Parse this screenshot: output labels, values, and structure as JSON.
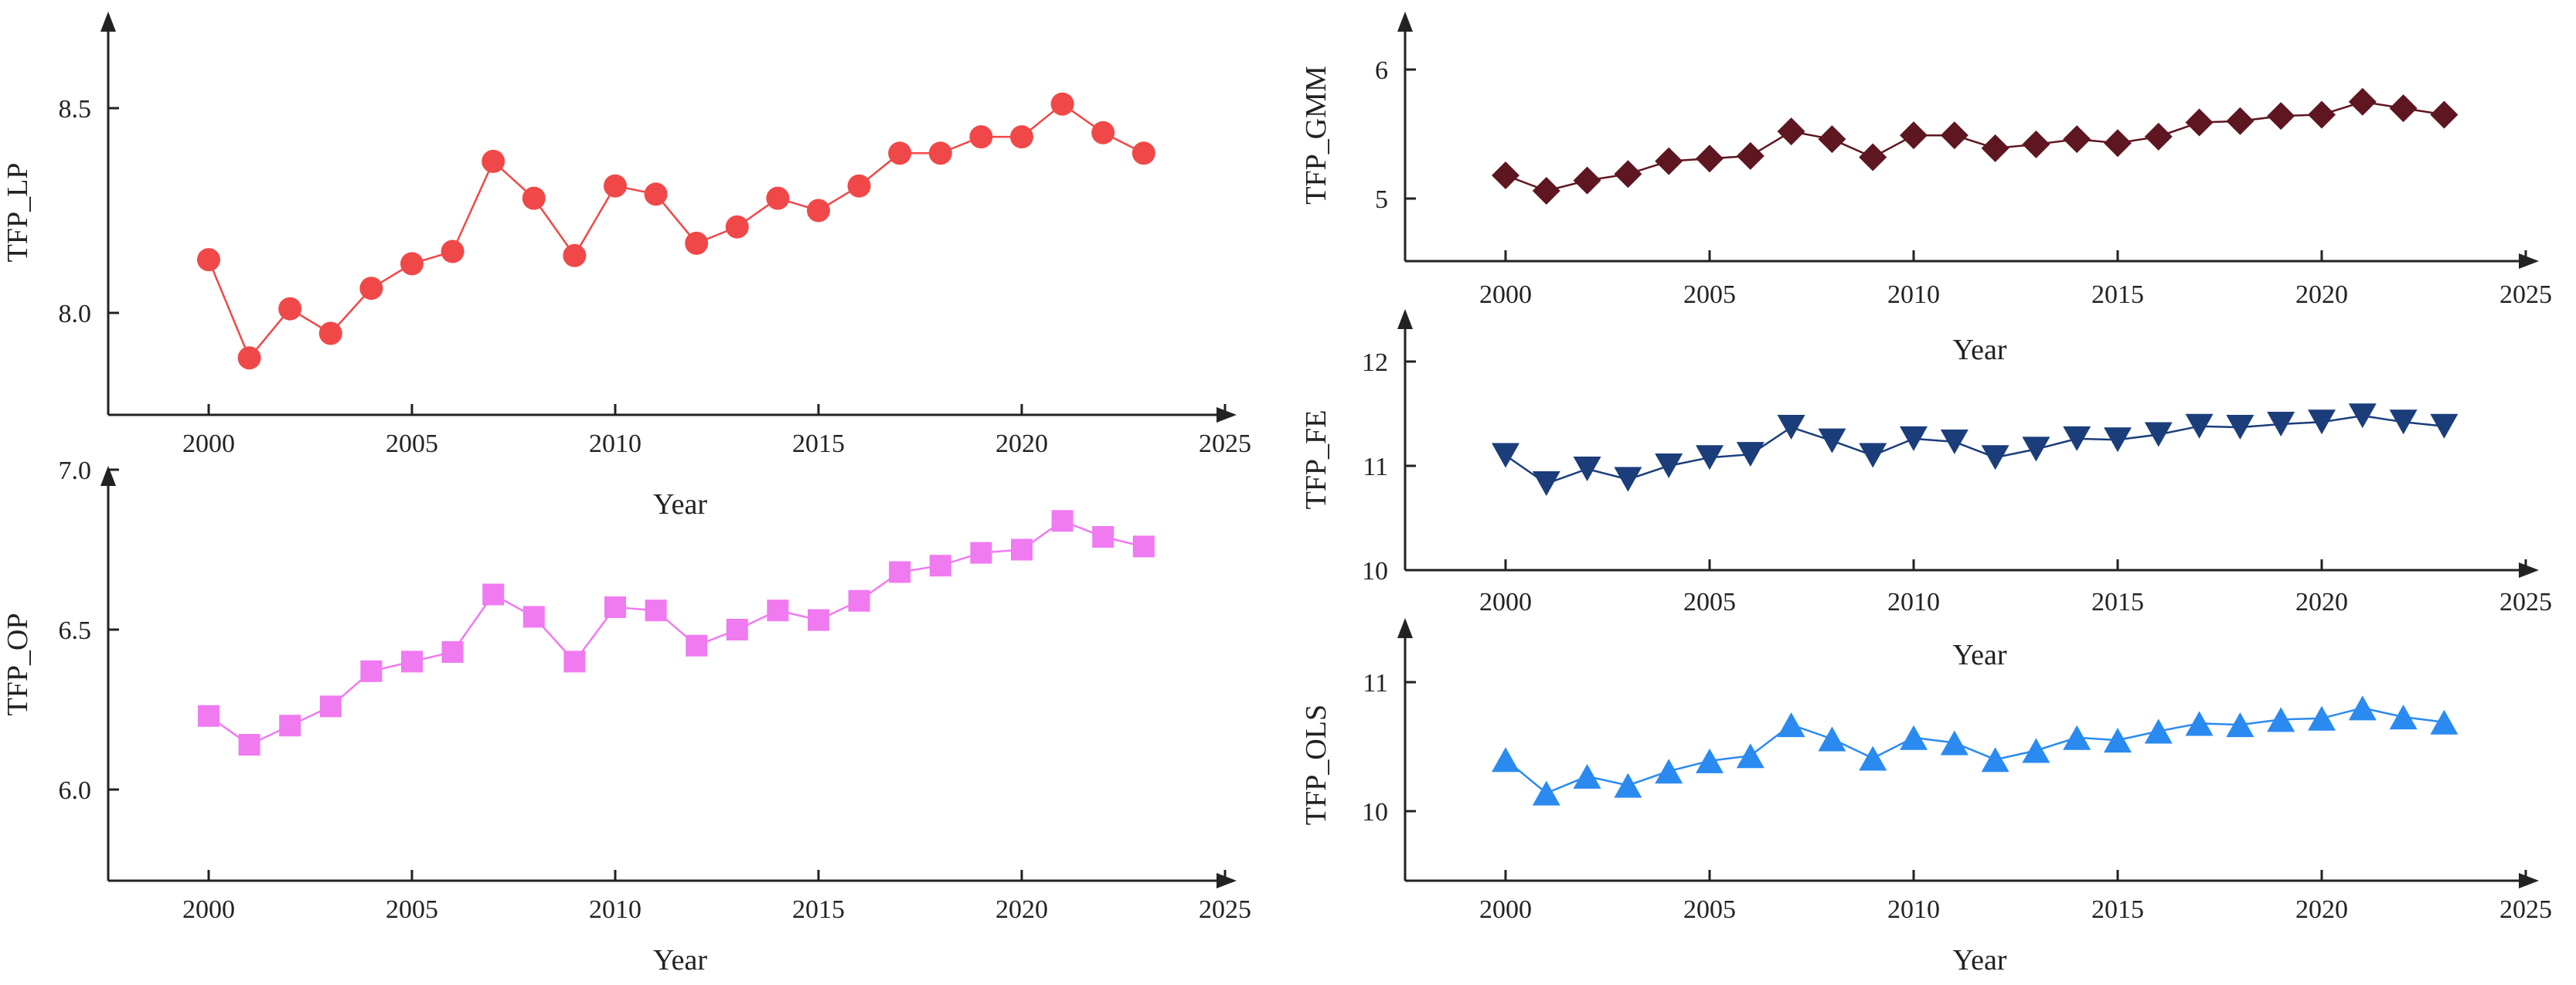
{
  "chart_data": [
    {
      "id": "lp",
      "type": "line",
      "title": "",
      "xlabel": "Year",
      "ylabel": "TFP_LP",
      "xlim": [
        1997.5,
        2025
      ],
      "ylim": [
        7.75,
        8.72
      ],
      "xticks": [
        2000,
        2005,
        2010,
        2015,
        2020,
        2025
      ],
      "xtick_labels": [
        "2000",
        "2005",
        "2010",
        "2015",
        "2020",
        "2025"
      ],
      "yticks": [
        8.0,
        8.5
      ],
      "ytick_labels": [
        "8.0",
        "8.5"
      ],
      "grid": false,
      "marker": "circle",
      "color": "#f04848",
      "x": [
        2000,
        2001,
        2002,
        2003,
        2004,
        2005,
        2006,
        2007,
        2008,
        2009,
        2010,
        2011,
        2012,
        2013,
        2014,
        2015,
        2016,
        2017,
        2018,
        2019,
        2020,
        2021,
        2022,
        2023
      ],
      "values": [
        8.13,
        7.89,
        8.01,
        7.95,
        8.06,
        8.12,
        8.15,
        8.37,
        8.28,
        8.14,
        8.31,
        8.29,
        8.17,
        8.21,
        8.28,
        8.25,
        8.31,
        8.39,
        8.39,
        8.43,
        8.43,
        8.51,
        8.44,
        8.39
      ]
    },
    {
      "id": "op",
      "type": "line",
      "title": "",
      "xlabel": "Year",
      "ylabel": "TFP_OP",
      "xlim": [
        1997.5,
        2025
      ],
      "ylim": [
        5.88,
        7.0
      ],
      "xticks": [
        2000,
        2005,
        2010,
        2015,
        2020,
        2025
      ],
      "xtick_labels": [
        "2000",
        "2005",
        "2010",
        "2015",
        "2020",
        "2025"
      ],
      "yticks": [
        6.0,
        6.5,
        7.0
      ],
      "ytick_labels": [
        "6.0",
        "6.5",
        "7.0"
      ],
      "grid": false,
      "marker": "square",
      "color": "#f07af0",
      "x": [
        2000,
        2001,
        2002,
        2003,
        2004,
        2005,
        2006,
        2007,
        2008,
        2009,
        2010,
        2011,
        2012,
        2013,
        2014,
        2015,
        2016,
        2017,
        2018,
        2019,
        2020,
        2021,
        2022,
        2023
      ],
      "values": [
        6.23,
        6.14,
        6.2,
        6.26,
        6.37,
        6.4,
        6.43,
        6.61,
        6.54,
        6.4,
        6.57,
        6.56,
        6.45,
        6.5,
        6.56,
        6.53,
        6.59,
        6.68,
        6.7,
        6.74,
        6.75,
        6.84,
        6.79,
        6.76
      ]
    },
    {
      "id": "gmm",
      "type": "line",
      "title": "",
      "xlabel": "Year",
      "ylabel": "TFP_GMM",
      "xlim": [
        1997.5,
        2025
      ],
      "ylim": [
        4.75,
        6.28
      ],
      "xticks": [
        2000,
        2005,
        2010,
        2015,
        2020,
        2025
      ],
      "xtick_labels": [
        "2000",
        "2005",
        "2010",
        "2015",
        "2020",
        "2025"
      ],
      "yticks": [
        5,
        6
      ],
      "ytick_labels": [
        "5",
        "6"
      ],
      "grid": false,
      "marker": "diamond",
      "color": "#5e1620",
      "x": [
        2000,
        2001,
        2002,
        2003,
        2004,
        2005,
        2006,
        2007,
        2008,
        2009,
        2010,
        2011,
        2012,
        2013,
        2014,
        2015,
        2016,
        2017,
        2018,
        2019,
        2020,
        2021,
        2022,
        2023
      ],
      "values": [
        5.18,
        5.06,
        5.14,
        5.19,
        5.29,
        5.31,
        5.33,
        5.52,
        5.46,
        5.32,
        5.49,
        5.49,
        5.39,
        5.42,
        5.46,
        5.43,
        5.48,
        5.59,
        5.6,
        5.64,
        5.65,
        5.75,
        5.7,
        5.65
      ]
    },
    {
      "id": "fe",
      "type": "line",
      "title": "",
      "xlabel": "Year",
      "ylabel": "TFP_FE",
      "xlim": [
        1997.5,
        2025
      ],
      "ylim": [
        10.0,
        12.24
      ],
      "xticks": [
        2000,
        2005,
        2010,
        2015,
        2020,
        2025
      ],
      "xtick_labels": [
        "2000",
        "2005",
        "2010",
        "2015",
        "2020",
        "2025"
      ],
      "yticks": [
        10,
        11,
        12
      ],
      "ytick_labels": [
        "10",
        "11",
        "12"
      ],
      "grid": false,
      "marker": "triangle-down",
      "color": "#1b3d7a",
      "x": [
        2000,
        2001,
        2002,
        2003,
        2004,
        2005,
        2006,
        2007,
        2008,
        2009,
        2010,
        2011,
        2012,
        2013,
        2014,
        2015,
        2016,
        2017,
        2018,
        2019,
        2020,
        2021,
        2022,
        2023
      ],
      "values": [
        11.1,
        10.83,
        10.97,
        10.87,
        11.0,
        11.08,
        11.11,
        11.37,
        11.24,
        11.1,
        11.26,
        11.23,
        11.08,
        11.16,
        11.26,
        11.25,
        11.3,
        11.38,
        11.37,
        11.4,
        11.42,
        11.48,
        11.42,
        11.38
      ]
    },
    {
      "id": "ols",
      "type": "line",
      "title": "",
      "xlabel": "Year",
      "ylabel": "TFP_OLS",
      "xlim": [
        1997.5,
        2025
      ],
      "ylim": [
        9.7,
        11.37
      ],
      "xticks": [
        2000,
        2005,
        2010,
        2015,
        2020,
        2025
      ],
      "xtick_labels": [
        "2000",
        "2005",
        "2010",
        "2015",
        "2020",
        "2025"
      ],
      "yticks": [
        10,
        11
      ],
      "ytick_labels": [
        "10",
        "11"
      ],
      "grid": false,
      "marker": "triangle-up",
      "color": "#2a8af0",
      "x": [
        2000,
        2001,
        2002,
        2003,
        2004,
        2005,
        2006,
        2007,
        2008,
        2009,
        2010,
        2011,
        2012,
        2013,
        2014,
        2015,
        2016,
        2017,
        2018,
        2019,
        2020,
        2021,
        2022,
        2023
      ],
      "values": [
        10.4,
        10.14,
        10.27,
        10.2,
        10.31,
        10.39,
        10.43,
        10.67,
        10.56,
        10.41,
        10.57,
        10.53,
        10.4,
        10.47,
        10.57,
        10.55,
        10.62,
        10.68,
        10.67,
        10.71,
        10.72,
        10.8,
        10.73,
        10.69
      ]
    }
  ]
}
